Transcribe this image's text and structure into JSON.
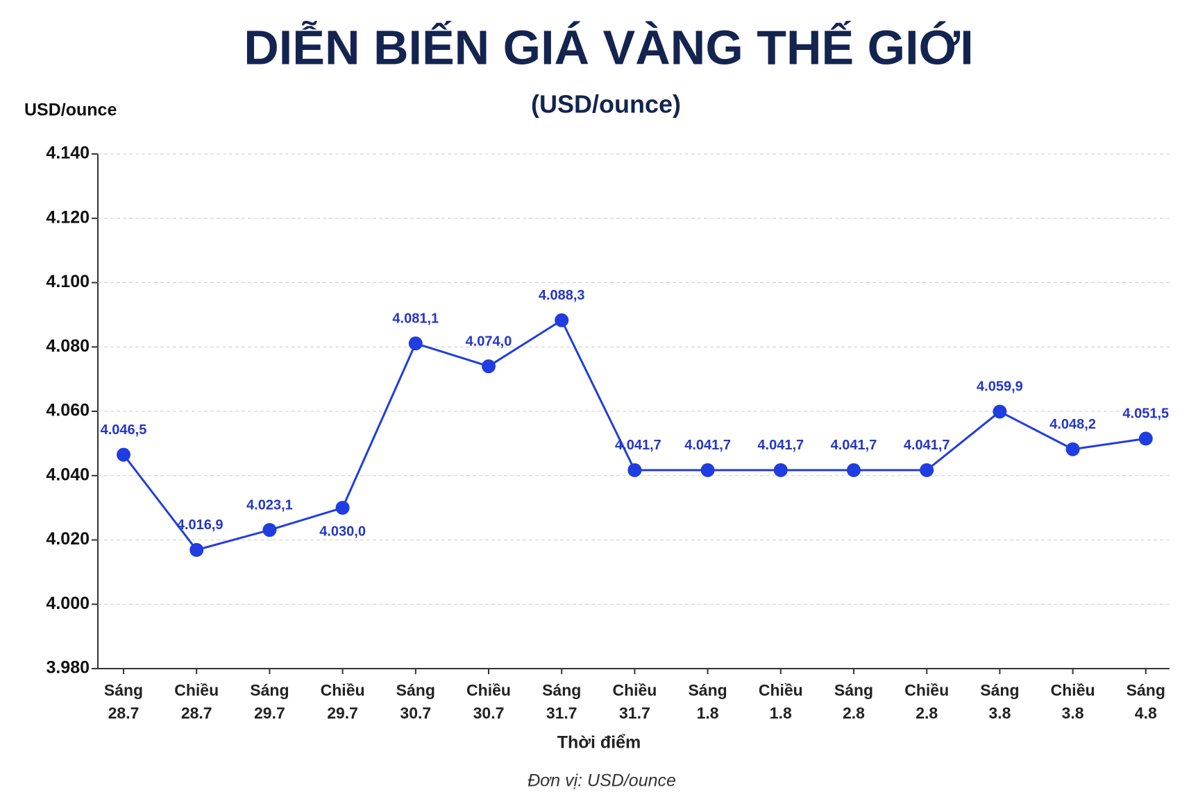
{
  "chart_data": {
    "type": "line",
    "title": "DIỄN BIẾN GIÁ VÀNG THẾ GIỚI",
    "subtitle": "(USD/ounce)",
    "y_label": "USD/ounce",
    "x_label": "Thời điểm",
    "footnote": "Đơn vị: USD/ounce",
    "categories": [
      [
        "Sáng",
        "28.7"
      ],
      [
        "Chiều",
        "28.7"
      ],
      [
        "Sáng",
        "29.7"
      ],
      [
        "Chiều",
        "29.7"
      ],
      [
        "Sáng",
        "30.7"
      ],
      [
        "Chiều",
        "30.7"
      ],
      [
        "Sáng",
        "31.7"
      ],
      [
        "Chiều",
        "31.7"
      ],
      [
        "Sáng",
        "1.8"
      ],
      [
        "Chiều",
        "1.8"
      ],
      [
        "Sáng",
        "2.8"
      ],
      [
        "Chiều",
        "2.8"
      ],
      [
        "Sáng",
        "3.8"
      ],
      [
        "Chiều",
        "3.8"
      ],
      [
        "Sáng",
        "4.8"
      ]
    ],
    "series": [
      {
        "color": "#1f3de0",
        "values": [
          4046.5,
          4016.9,
          4023.1,
          4030.0,
          4081.1,
          4074.0,
          4088.3,
          4041.7,
          4041.7,
          4041.7,
          4041.7,
          4041.7,
          4059.9,
          4048.2,
          4051.5
        ],
        "value_labels": [
          "4.046,5",
          "4.016,9",
          "4.023,1",
          "4.030,0",
          "4.081,1",
          "4.074,0",
          "4.088,3",
          "4.041,7",
          "4.041,7",
          "4.041,7",
          "4.041,7",
          "4.041,7",
          "4.059,9",
          "4.048,2",
          "4.051,5"
        ]
      }
    ],
    "ylim": [
      3980,
      4140
    ],
    "yticks": [
      {
        "value": 3980,
        "label": "3.980"
      },
      {
        "value": 4000,
        "label": "4.000"
      },
      {
        "value": 4020,
        "label": "4.020"
      },
      {
        "value": 4040,
        "label": "4.040"
      },
      {
        "value": 4060,
        "label": "4.060"
      },
      {
        "value": 4080,
        "label": "4.080"
      },
      {
        "value": 4100,
        "label": "4.100"
      },
      {
        "value": 4120,
        "label": "4.120"
      },
      {
        "value": 4140,
        "label": "4.140"
      }
    ],
    "grid": true
  }
}
